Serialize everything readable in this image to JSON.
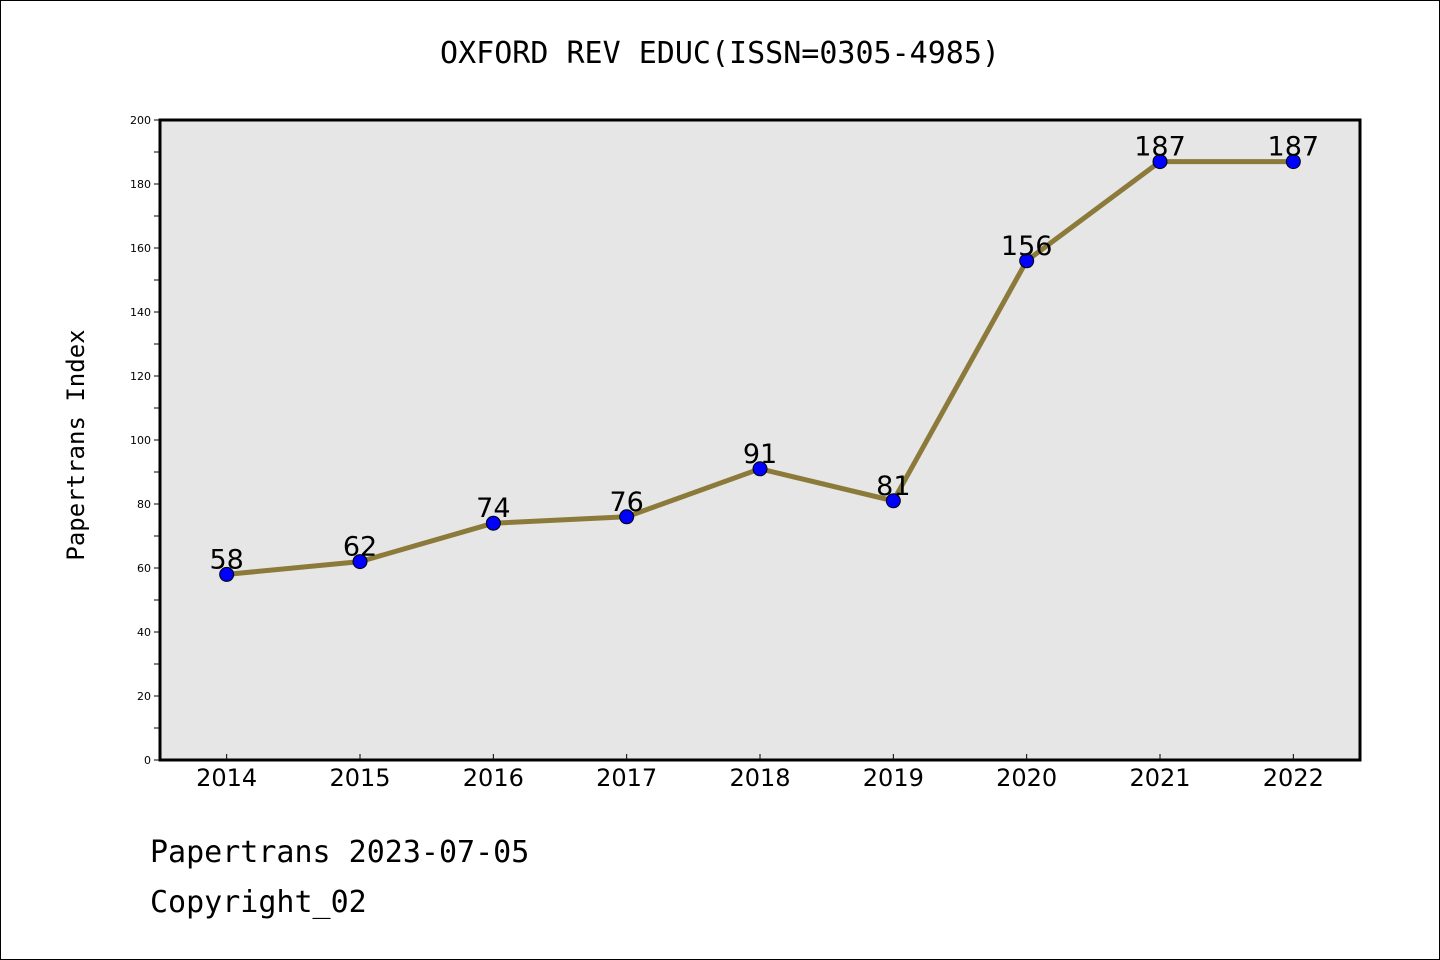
{
  "chart_data": {
    "type": "line",
    "title": "OXFORD REV EDUC(ISSN=0305-4985)",
    "ylabel": "Papertrans Index",
    "xlabel": "",
    "x": [
      "2014",
      "2015",
      "2016",
      "2017",
      "2018",
      "2019",
      "2020",
      "2021",
      "2022"
    ],
    "values": [
      58,
      62,
      74,
      76,
      91,
      81,
      156,
      187,
      187
    ],
    "data_labels": [
      "58",
      "62",
      "74",
      "76",
      "91",
      "81",
      "156",
      "187",
      "187"
    ],
    "ylim": [
      0,
      200
    ],
    "yticks": [
      "0",
      "20",
      "40",
      "60",
      "80",
      "100",
      "120",
      "140",
      "160",
      "180",
      "200"
    ],
    "line_color": "#8B7A3A",
    "marker_color": "#0000FF",
    "plot_background": "#E6E6E6",
    "grid": false,
    "legend": "none"
  },
  "footer": {
    "date_line": "Papertrans 2023-07-05",
    "copyright_line": "Copyright_02"
  }
}
